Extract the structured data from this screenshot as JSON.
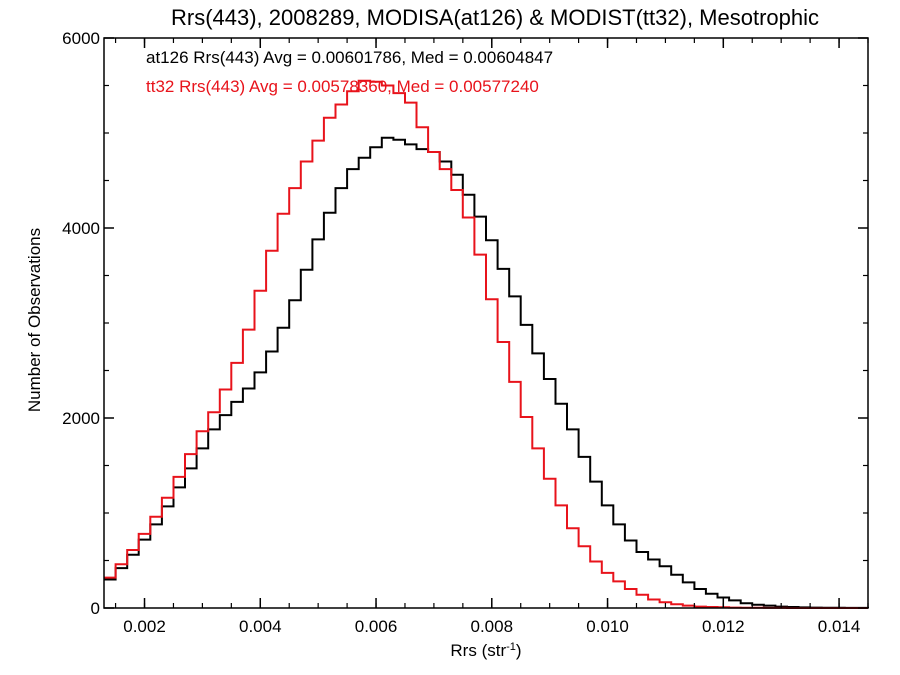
{
  "chart_data": {
    "type": "line",
    "step": true,
    "title": "Rrs(443), 2008289, MODISA(at126) & MODIST(tt32), Mesotrophic",
    "xlabel": {
      "base": "Rrs (str",
      "sup": "-1",
      "end": ")"
    },
    "ylabel": "Number of Observations",
    "xlim": [
      0.0013,
      0.0145
    ],
    "ylim": [
      0,
      6000
    ],
    "xticks": [
      0.002,
      0.004,
      0.006,
      0.008,
      0.01,
      0.012,
      0.014
    ],
    "xtick_labels": [
      "0.002",
      "0.004",
      "0.006",
      "0.008",
      "0.010",
      "0.012",
      "0.014"
    ],
    "yticks": [
      0,
      2000,
      4000,
      6000
    ],
    "ytick_labels": [
      "0",
      "2000",
      "4000",
      "6000"
    ],
    "grid": false,
    "annotations": [
      {
        "text": "at126 Rrs(443) Avg = 0.00601786, Med = 0.00604847",
        "color": "#000000"
      },
      {
        "text": "tt32 Rrs(443) Avg = 0.00578360, Med = 0.00577240",
        "color": "#e8131b"
      }
    ],
    "series": [
      {
        "color": "#000000",
        "x": [
          0.0013,
          0.0015,
          0.0017,
          0.0019,
          0.0021,
          0.0023,
          0.0025,
          0.0027,
          0.0029,
          0.0031,
          0.0033,
          0.0035,
          0.0037,
          0.0039,
          0.0041,
          0.0043,
          0.0045,
          0.0047,
          0.0049,
          0.0051,
          0.0053,
          0.0055,
          0.0057,
          0.0059,
          0.0061,
          0.0063,
          0.0065,
          0.0067,
          0.0069,
          0.0071,
          0.0073,
          0.0075,
          0.0077,
          0.0079,
          0.0081,
          0.0083,
          0.0085,
          0.0087,
          0.0089,
          0.0091,
          0.0093,
          0.0095,
          0.0097,
          0.0099,
          0.0101,
          0.0103,
          0.0105,
          0.0107,
          0.0109,
          0.0111,
          0.0113,
          0.0115,
          0.0117,
          0.0119,
          0.0121,
          0.0123,
          0.0125,
          0.0127,
          0.0129,
          0.0131,
          0.0133,
          0.0135,
          0.0137,
          0.0139,
          0.0141,
          0.0143,
          0.0145
        ],
        "y": [
          300,
          420,
          560,
          720,
          880,
          1070,
          1270,
          1470,
          1680,
          1880,
          2030,
          2170,
          2310,
          2480,
          2700,
          2950,
          3240,
          3560,
          3880,
          4160,
          4420,
          4620,
          4740,
          4850,
          4950,
          4930,
          4880,
          4830,
          4800,
          4700,
          4560,
          4350,
          4120,
          3870,
          3570,
          3280,
          2980,
          2680,
          2410,
          2150,
          1880,
          1590,
          1330,
          1080,
          880,
          710,
          590,
          510,
          440,
          350,
          270,
          200,
          150,
          110,
          80,
          50,
          35,
          25,
          15,
          10,
          6,
          4,
          3,
          2,
          1,
          1,
          0
        ]
      },
      {
        "color": "#e8131b",
        "x": [
          0.0013,
          0.0015,
          0.0017,
          0.0019,
          0.0021,
          0.0023,
          0.0025,
          0.0027,
          0.0029,
          0.0031,
          0.0033,
          0.0035,
          0.0037,
          0.0039,
          0.0041,
          0.0043,
          0.0045,
          0.0047,
          0.0049,
          0.0051,
          0.0053,
          0.0055,
          0.0057,
          0.0059,
          0.0061,
          0.0063,
          0.0065,
          0.0067,
          0.0069,
          0.0071,
          0.0073,
          0.0075,
          0.0077,
          0.0079,
          0.0081,
          0.0083,
          0.0085,
          0.0087,
          0.0089,
          0.0091,
          0.0093,
          0.0095,
          0.0097,
          0.0099,
          0.0101,
          0.0103,
          0.0105,
          0.0107,
          0.0109,
          0.0111,
          0.0113,
          0.0115,
          0.0117,
          0.0119,
          0.0121,
          0.0123,
          0.0125,
          0.0127,
          0.0129,
          0.0131,
          0.0133,
          0.0135,
          0.0137,
          0.0139,
          0.0141,
          0.0143,
          0.0145
        ],
        "y": [
          320,
          460,
          610,
          780,
          960,
          1160,
          1380,
          1620,
          1860,
          2060,
          2300,
          2580,
          2930,
          3340,
          3760,
          4150,
          4420,
          4700,
          4920,
          5160,
          5300,
          5440,
          5550,
          5540,
          5500,
          5420,
          5320,
          5060,
          4800,
          4620,
          4400,
          4110,
          3720,
          3250,
          2800,
          2380,
          2010,
          1680,
          1360,
          1080,
          840,
          650,
          490,
          370,
          280,
          200,
          140,
          90,
          60,
          40,
          25,
          15,
          10,
          7,
          4,
          3,
          2,
          1,
          1,
          0,
          0,
          0,
          0,
          0,
          0,
          0,
          0
        ]
      }
    ]
  }
}
